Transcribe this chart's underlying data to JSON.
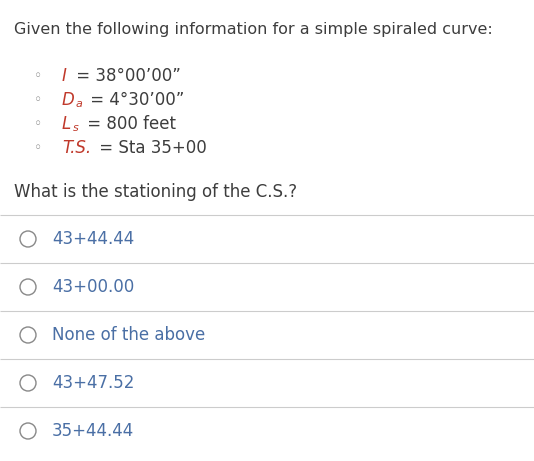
{
  "title": "Given the following information for a simple spiraled curve:",
  "question": "What is the stationing of the C.S.?",
  "options": [
    "43+44.44",
    "43+00.00",
    "None of the above",
    "43+47.52",
    "35+44.44"
  ],
  "bg_color": "#ffffff",
  "text_color": "#3d3d3d",
  "title_color": "#3d3d3d",
  "question_color": "#3d3d3d",
  "option_color": "#4a6fa5",
  "bullet_color": "#888888",
  "highlight_color": "#c0392b",
  "line_color": "#cccccc",
  "title_fontsize": 11.5,
  "body_fontsize": 12.0,
  "option_fontsize": 12.0,
  "fig_width": 5.34,
  "fig_height": 4.61,
  "dpi": 100
}
